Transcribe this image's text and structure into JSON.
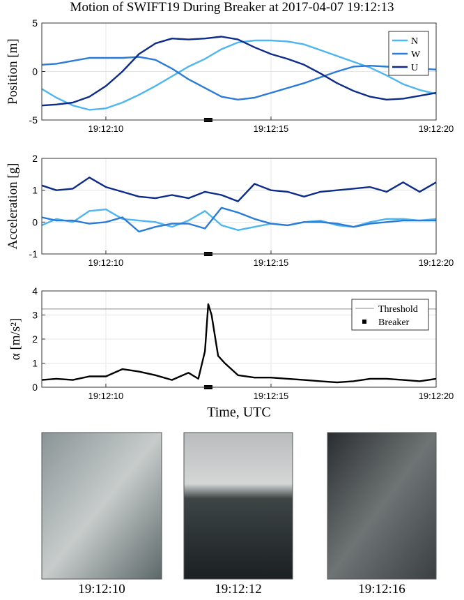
{
  "title": "Motion of SWIFT19 During Breaker at 2017-04-07 19:12:13",
  "chart_data": [
    {
      "type": "line",
      "ylabel": "Position [m]",
      "ylim": [
        -5,
        5
      ],
      "yticks": [
        -5,
        0,
        5
      ],
      "xlim": [
        8.06,
        20
      ],
      "xticks": [
        {
          "value": 10,
          "label": "19:12:10"
        },
        {
          "value": 15,
          "label": "19:12:15"
        },
        {
          "value": 20,
          "label": "19:12:20"
        }
      ],
      "grid": true,
      "legend": "upper right",
      "x": [
        8.06,
        8.5,
        9,
        9.5,
        10,
        10.5,
        11,
        11.5,
        12,
        12.5,
        13,
        13.5,
        14,
        14.5,
        15,
        15.5,
        16,
        16.5,
        17,
        17.5,
        18,
        18.5,
        19,
        19.5,
        20
      ],
      "series": [
        {
          "name": "N",
          "color": "#4db6f0",
          "values": [
            -1.8,
            -2.7,
            -3.5,
            -3.95,
            -3.8,
            -3.2,
            -2.4,
            -1.5,
            -0.5,
            0.5,
            1.3,
            2.3,
            3.0,
            3.2,
            3.2,
            3.1,
            2.8,
            2.2,
            1.6,
            1.0,
            0.4,
            -0.4,
            -1.3,
            -1.9,
            -2.3
          ]
        },
        {
          "name": "W",
          "color": "#2a7bd8",
          "values": [
            0.7,
            0.8,
            1.1,
            1.4,
            1.4,
            1.4,
            1.5,
            1.2,
            0.3,
            -0.8,
            -1.7,
            -2.6,
            -2.9,
            -2.7,
            -2.2,
            -1.7,
            -1.2,
            -0.6,
            0.0,
            0.5,
            0.6,
            0.5,
            0.4,
            0.3,
            0.2
          ]
        },
        {
          "name": "U",
          "color": "#0d2b8a",
          "values": [
            -3.5,
            -3.4,
            -3.2,
            -2.6,
            -1.5,
            0.0,
            1.8,
            2.9,
            3.4,
            3.3,
            3.4,
            3.6,
            3.3,
            2.5,
            1.8,
            1.3,
            0.7,
            -0.2,
            -1.2,
            -2.0,
            -2.6,
            -2.9,
            -2.8,
            -2.5,
            -2.2
          ]
        }
      ],
      "breaker": {
        "color": "#000000",
        "x": [
          13.1
        ],
        "values": [
          -5
        ]
      }
    },
    {
      "type": "line",
      "ylabel": "Acceleration [g]",
      "ylim": [
        -1,
        2
      ],
      "yticks": [
        -1,
        0,
        1,
        2
      ],
      "xlim": [
        8.06,
        20
      ],
      "xticks": [
        {
          "value": 10,
          "label": "19:12:10"
        },
        {
          "value": 15,
          "label": "19:12:15"
        },
        {
          "value": 20,
          "label": "19:12:20"
        }
      ],
      "grid": true,
      "x": [
        8.06,
        8.5,
        9,
        9.5,
        10,
        10.5,
        11,
        11.5,
        12,
        12.5,
        13,
        13.5,
        14,
        14.5,
        15,
        15.5,
        16,
        16.5,
        17,
        17.5,
        18,
        18.5,
        19,
        19.5,
        20
      ],
      "series": [
        {
          "color": "#4db6f0",
          "values": [
            -0.1,
            0.1,
            0.0,
            0.35,
            0.4,
            0.1,
            0.05,
            0.0,
            -0.15,
            0.05,
            0.35,
            -0.1,
            -0.25,
            -0.15,
            -0.05,
            -0.1,
            0.0,
            0.05,
            -0.1,
            -0.15,
            0.0,
            0.1,
            0.1,
            0.05,
            0.1
          ]
        },
        {
          "color": "#2a7bd8",
          "values": [
            0.15,
            0.05,
            0.05,
            -0.05,
            0.0,
            0.15,
            -0.3,
            -0.15,
            -0.05,
            -0.05,
            -0.2,
            0.45,
            0.3,
            0.1,
            -0.05,
            -0.1,
            0.0,
            0.0,
            -0.05,
            -0.15,
            -0.05,
            0.0,
            0.05,
            0.05,
            0.05
          ]
        },
        {
          "color": "#0d2b8a",
          "values": [
            1.15,
            1.0,
            1.05,
            1.4,
            1.1,
            0.95,
            0.8,
            0.75,
            0.85,
            0.75,
            0.95,
            0.85,
            0.65,
            1.2,
            1.0,
            0.95,
            0.8,
            0.95,
            1.0,
            1.05,
            1.1,
            0.95,
            1.25,
            0.95,
            1.25
          ]
        }
      ],
      "breaker": {
        "color": "#000000",
        "x": [
          13.1
        ],
        "values": [
          -1
        ]
      }
    },
    {
      "type": "line",
      "ylabel": "α [m/s²]",
      "xlabel": "Time, UTC",
      "ylim": [
        0,
        4
      ],
      "yticks": [
        0,
        1,
        2,
        3,
        4
      ],
      "xlim": [
        8.06,
        20
      ],
      "xticks": [
        {
          "value": 10,
          "label": "19:12:10"
        },
        {
          "value": 15,
          "label": "19:12:15"
        },
        {
          "value": 20,
          "label": "19:12:20"
        }
      ],
      "grid": true,
      "legend": "upper right",
      "x": [
        8.06,
        8.5,
        9,
        9.5,
        10,
        10.5,
        11,
        11.5,
        12,
        12.5,
        12.8,
        13.0,
        13.1,
        13.2,
        13.4,
        13.6,
        14,
        14.5,
        15,
        15.5,
        16,
        16.5,
        17,
        17.5,
        18,
        18.5,
        19,
        19.5,
        20
      ],
      "series": [
        {
          "name": "Threshold",
          "color": "#a0a0a0",
          "hline": 3.25
        },
        {
          "name": "Breaker",
          "color": "#000000",
          "marker": true,
          "x": [
            13.1
          ],
          "values": [
            0
          ]
        },
        {
          "color": "#000000",
          "values": [
            0.3,
            0.35,
            0.3,
            0.45,
            0.45,
            0.75,
            0.65,
            0.5,
            0.3,
            0.6,
            0.35,
            1.5,
            3.45,
            3.0,
            1.3,
            1.0,
            0.5,
            0.4,
            0.4,
            0.35,
            0.3,
            0.25,
            0.2,
            0.25,
            0.35,
            0.35,
            0.3,
            0.25,
            0.35
          ]
        }
      ]
    }
  ],
  "photos": [
    {
      "caption": "19:12:10"
    },
    {
      "caption": "19:12:12"
    },
    {
      "caption": "19:12:16"
    }
  ]
}
